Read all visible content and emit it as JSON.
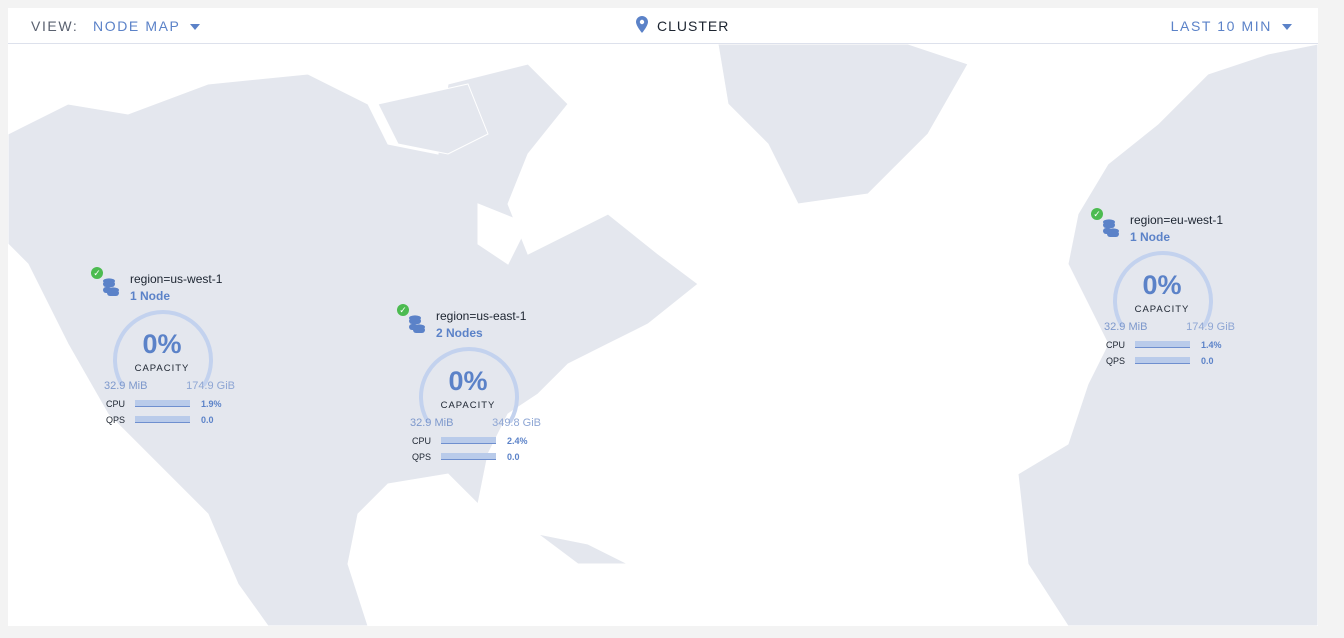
{
  "header": {
    "view_label": "VIEW:",
    "view_value": "NODE MAP",
    "location": "CLUSTER",
    "time_range": "LAST 10 MIN"
  },
  "colors": {
    "accent": "#5b82c8",
    "healthy": "#4cbb50",
    "land": "#e4e7ee"
  },
  "clusters": [
    {
      "region": "region=us-west-1",
      "nodes": "1 Node",
      "capacity_pct": "0%",
      "capacity_label": "CAPACITY",
      "used": "32.9 MiB",
      "total": "174.9 GiB",
      "cpu_label": "CPU",
      "cpu": "1.9%",
      "qps_label": "QPS",
      "qps": "0.0",
      "status": "healthy"
    },
    {
      "region": "region=us-east-1",
      "nodes": "2 Nodes",
      "capacity_pct": "0%",
      "capacity_label": "CAPACITY",
      "used": "32.9 MiB",
      "total": "349.8 GiB",
      "cpu_label": "CPU",
      "cpu": "2.4%",
      "qps_label": "QPS",
      "qps": "0.0",
      "status": "healthy"
    },
    {
      "region": "region=eu-west-1",
      "nodes": "1 Node",
      "capacity_pct": "0%",
      "capacity_label": "CAPACITY",
      "used": "32.9 MiB",
      "total": "174.9 GiB",
      "cpu_label": "CPU",
      "cpu": "1.4%",
      "qps_label": "QPS",
      "qps": "0.0",
      "status": "healthy"
    }
  ]
}
